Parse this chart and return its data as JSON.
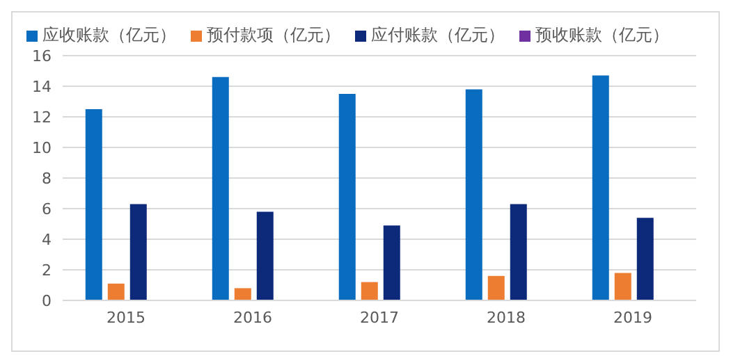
{
  "chart_data": {
    "type": "bar",
    "categories": [
      "2015",
      "2016",
      "2017",
      "2018",
      "2019"
    ],
    "series": [
      {
        "name": "应收账款（亿元）",
        "color": "#0a6cbf",
        "values": [
          12.5,
          14.6,
          13.5,
          13.8,
          14.7
        ]
      },
      {
        "name": "预付款项（亿元）",
        "color": "#ed7d31",
        "values": [
          1.1,
          0.8,
          1.2,
          1.6,
          1.8
        ]
      },
      {
        "name": "应付账款（亿元）",
        "color": "#0d2a7a",
        "values": [
          6.3,
          5.8,
          4.9,
          6.3,
          5.4
        ]
      },
      {
        "name": "预收账款（亿元）",
        "color": "#7030a0",
        "values": [
          null,
          null,
          null,
          null,
          null
        ]
      }
    ],
    "ylim": [
      0,
      16
    ],
    "yticks": [
      0,
      2,
      4,
      6,
      8,
      10,
      12,
      14,
      16
    ],
    "grid": "y",
    "legend": "top"
  }
}
